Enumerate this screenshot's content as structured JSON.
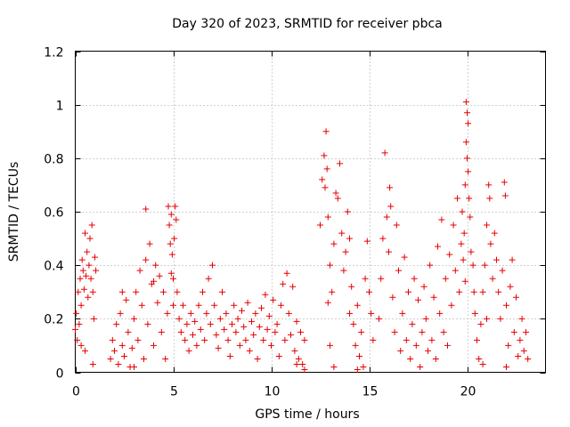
{
  "chart_data": {
    "type": "scatter",
    "title": "Day 320 of 2023, SRMTID for receiver pbca",
    "xlabel": "GPS time / hours",
    "ylabel": "SRMTID / TECUs",
    "xlim": [
      0,
      24
    ],
    "ylim": [
      0,
      1.2
    ],
    "x_ticks": [
      0,
      5,
      10,
      15,
      20
    ],
    "x_tick_labels": [
      "0",
      "5",
      "10",
      "15",
      "20"
    ],
    "y_ticks": [
      0,
      0.2,
      0.4,
      0.6,
      0.8,
      1.0,
      1.2
    ],
    "y_tick_labels": [
      "0",
      "0.2",
      "0.4",
      "0.6",
      "0.8",
      "1",
      "1.2"
    ],
    "grid": true,
    "marker": "+",
    "color": "#e60000",
    "series": [
      {
        "name": "SRMTID",
        "points": [
          [
            0.0,
            0.16
          ],
          [
            0.05,
            0.22
          ],
          [
            0.1,
            0.12
          ],
          [
            0.15,
            0.3
          ],
          [
            0.2,
            0.18
          ],
          [
            0.25,
            0.35
          ],
          [
            0.3,
            0.25
          ],
          [
            0.35,
            0.42
          ],
          [
            0.4,
            0.38
          ],
          [
            0.45,
            0.31
          ],
          [
            0.5,
            0.52
          ],
          [
            0.55,
            0.36
          ],
          [
            0.6,
            0.45
          ],
          [
            0.65,
            0.28
          ],
          [
            0.7,
            0.4
          ],
          [
            0.75,
            0.5
          ],
          [
            0.8,
            0.35
          ],
          [
            0.85,
            0.55
          ],
          [
            0.9,
            0.3
          ],
          [
            0.95,
            0.2
          ],
          [
            1.0,
            0.43
          ],
          [
            1.05,
            0.38
          ],
          [
            0.9,
            0.03
          ],
          [
            0.5,
            0.08
          ],
          [
            0.3,
            0.1
          ],
          [
            1.8,
            0.05
          ],
          [
            1.9,
            0.12
          ],
          [
            2.0,
            0.08
          ],
          [
            2.1,
            0.18
          ],
          [
            2.2,
            0.03
          ],
          [
            2.3,
            0.22
          ],
          [
            2.4,
            0.1
          ],
          [
            2.5,
            0.06
          ],
          [
            2.6,
            0.27
          ],
          [
            2.7,
            0.15
          ],
          [
            2.8,
            0.02
          ],
          [
            2.9,
            0.09
          ],
          [
            3.0,
            0.2
          ],
          [
            3.1,
            0.3
          ],
          [
            3.2,
            0.12
          ],
          [
            3.3,
            0.38
          ],
          [
            3.4,
            0.25
          ],
          [
            3.5,
            0.05
          ],
          [
            3.6,
            0.42
          ],
          [
            3.7,
            0.18
          ],
          [
            3.8,
            0.48
          ],
          [
            3.9,
            0.33
          ],
          [
            4.0,
            0.1
          ],
          [
            4.1,
            0.4
          ],
          [
            4.2,
            0.26
          ],
          [
            4.3,
            0.36
          ],
          [
            4.4,
            0.15
          ],
          [
            4.5,
            0.3
          ],
          [
            4.6,
            0.05
          ],
          [
            4.7,
            0.22
          ],
          [
            3.6,
            0.61
          ],
          [
            2.4,
            0.3
          ],
          [
            3.0,
            0.02
          ],
          [
            4.0,
            0.34
          ],
          [
            4.75,
            0.62
          ],
          [
            4.8,
            0.55
          ],
          [
            4.85,
            0.48
          ],
          [
            4.9,
            0.59
          ],
          [
            4.95,
            0.44
          ],
          [
            5.0,
            0.35
          ],
          [
            5.05,
            0.5
          ],
          [
            5.1,
            0.62
          ],
          [
            5.15,
            0.57
          ],
          [
            4.9,
            0.37
          ],
          [
            5.2,
            0.3
          ],
          [
            5.0,
            0.25
          ],
          [
            5.3,
            0.2
          ],
          [
            5.4,
            0.15
          ],
          [
            5.5,
            0.25
          ],
          [
            5.6,
            0.12
          ],
          [
            5.7,
            0.18
          ],
          [
            5.8,
            0.08
          ],
          [
            5.9,
            0.22
          ],
          [
            6.0,
            0.14
          ],
          [
            6.1,
            0.19
          ],
          [
            6.2,
            0.1
          ],
          [
            6.3,
            0.25
          ],
          [
            6.4,
            0.16
          ],
          [
            6.5,
            0.3
          ],
          [
            6.6,
            0.12
          ],
          [
            6.7,
            0.22
          ],
          [
            6.8,
            0.35
          ],
          [
            6.9,
            0.18
          ],
          [
            7.0,
            0.4
          ],
          [
            7.1,
            0.25
          ],
          [
            7.2,
            0.14
          ],
          [
            7.3,
            0.09
          ],
          [
            7.4,
            0.2
          ],
          [
            7.5,
            0.3
          ],
          [
            7.6,
            0.16
          ],
          [
            7.7,
            0.22
          ],
          [
            7.8,
            0.12
          ],
          [
            7.9,
            0.06
          ],
          [
            8.0,
            0.18
          ],
          [
            8.1,
            0.25
          ],
          [
            8.2,
            0.15
          ],
          [
            8.3,
            0.2
          ],
          [
            8.4,
            0.1
          ],
          [
            8.5,
            0.23
          ],
          [
            8.6,
            0.17
          ],
          [
            8.7,
            0.12
          ],
          [
            8.8,
            0.26
          ],
          [
            8.9,
            0.08
          ],
          [
            9.0,
            0.19
          ],
          [
            9.1,
            0.14
          ],
          [
            9.2,
            0.22
          ],
          [
            9.3,
            0.05
          ],
          [
            9.4,
            0.17
          ],
          [
            9.5,
            0.24
          ],
          [
            9.6,
            0.12
          ],
          [
            9.7,
            0.29
          ],
          [
            9.8,
            0.16
          ],
          [
            9.9,
            0.21
          ],
          [
            10.0,
            0.1
          ],
          [
            10.1,
            0.27
          ],
          [
            10.2,
            0.15
          ],
          [
            10.3,
            0.18
          ],
          [
            10.4,
            0.06
          ],
          [
            10.5,
            0.25
          ],
          [
            10.6,
            0.33
          ],
          [
            10.7,
            0.12
          ],
          [
            10.8,
            0.37
          ],
          [
            10.9,
            0.22
          ],
          [
            11.0,
            0.14
          ],
          [
            11.1,
            0.32
          ],
          [
            11.2,
            0.08
          ],
          [
            11.3,
            0.19
          ],
          [
            11.4,
            0.05
          ],
          [
            11.5,
            0.15
          ],
          [
            11.6,
            0.03
          ],
          [
            11.7,
            0.12
          ],
          [
            11.3,
            0.03
          ],
          [
            11.7,
            0.01
          ],
          [
            12.5,
            0.55
          ],
          [
            12.6,
            0.72
          ],
          [
            12.7,
            0.81
          ],
          [
            12.75,
            0.69
          ],
          [
            12.8,
            0.9
          ],
          [
            12.85,
            0.76
          ],
          [
            12.9,
            0.58
          ],
          [
            13.0,
            0.4
          ],
          [
            13.1,
            0.3
          ],
          [
            13.2,
            0.48
          ],
          [
            13.3,
            0.67
          ],
          [
            13.4,
            0.65
          ],
          [
            13.5,
            0.78
          ],
          [
            13.6,
            0.52
          ],
          [
            13.7,
            0.38
          ],
          [
            13.8,
            0.45
          ],
          [
            13.9,
            0.6
          ],
          [
            14.0,
            0.5
          ],
          [
            14.1,
            0.32
          ],
          [
            14.2,
            0.18
          ],
          [
            14.3,
            0.1
          ],
          [
            14.4,
            0.25
          ],
          [
            14.5,
            0.06
          ],
          [
            14.6,
            0.15
          ],
          [
            14.7,
            0.02
          ],
          [
            14.8,
            0.35
          ],
          [
            14.9,
            0.49
          ],
          [
            15.0,
            0.3
          ],
          [
            15.1,
            0.22
          ],
          [
            15.2,
            0.12
          ],
          [
            13.0,
            0.1
          ],
          [
            13.2,
            0.02
          ],
          [
            12.9,
            0.26
          ],
          [
            14.0,
            0.22
          ],
          [
            14.4,
            0.01
          ],
          [
            15.5,
            0.2
          ],
          [
            15.6,
            0.35
          ],
          [
            15.7,
            0.5
          ],
          [
            15.8,
            0.82
          ],
          [
            15.9,
            0.58
          ],
          [
            16.0,
            0.45
          ],
          [
            16.05,
            0.69
          ],
          [
            16.1,
            0.62
          ],
          [
            16.2,
            0.28
          ],
          [
            16.3,
            0.15
          ],
          [
            16.4,
            0.55
          ],
          [
            16.5,
            0.38
          ],
          [
            16.6,
            0.08
          ],
          [
            16.7,
            0.22
          ],
          [
            16.8,
            0.43
          ],
          [
            16.9,
            0.12
          ],
          [
            17.0,
            0.3
          ],
          [
            17.1,
            0.05
          ],
          [
            17.2,
            0.18
          ],
          [
            17.3,
            0.35
          ],
          [
            17.4,
            0.1
          ],
          [
            17.5,
            0.27
          ],
          [
            17.6,
            0.02
          ],
          [
            17.7,
            0.15
          ],
          [
            17.8,
            0.32
          ],
          [
            17.9,
            0.2
          ],
          [
            18.0,
            0.08
          ],
          [
            18.1,
            0.4
          ],
          [
            18.2,
            0.12
          ],
          [
            18.3,
            0.28
          ],
          [
            18.4,
            0.05
          ],
          [
            18.5,
            0.47
          ],
          [
            18.6,
            0.22
          ],
          [
            18.7,
            0.57
          ],
          [
            18.8,
            0.15
          ],
          [
            18.9,
            0.35
          ],
          [
            19.0,
            0.1
          ],
          [
            19.1,
            0.44
          ],
          [
            19.2,
            0.25
          ],
          [
            19.3,
            0.55
          ],
          [
            19.4,
            0.38
          ],
          [
            19.5,
            0.65
          ],
          [
            19.6,
            0.3
          ],
          [
            19.7,
            0.48
          ],
          [
            19.75,
            0.6
          ],
          [
            19.8,
            0.42
          ],
          [
            19.85,
            0.52
          ],
          [
            19.9,
            0.34
          ],
          [
            19.95,
            1.01
          ],
          [
            20.0,
            0.97
          ],
          [
            20.05,
            0.93
          ],
          [
            19.95,
            0.86
          ],
          [
            20.0,
            0.8
          ],
          [
            20.05,
            0.75
          ],
          [
            19.9,
            0.7
          ],
          [
            20.1,
            0.65
          ],
          [
            20.15,
            0.58
          ],
          [
            20.2,
            0.45
          ],
          [
            20.3,
            0.4
          ],
          [
            20.35,
            0.3
          ],
          [
            20.4,
            0.22
          ],
          [
            20.5,
            0.12
          ],
          [
            20.6,
            0.05
          ],
          [
            20.7,
            0.18
          ],
          [
            20.8,
            0.3
          ],
          [
            20.9,
            0.4
          ],
          [
            21.0,
            0.55
          ],
          [
            21.1,
            0.7
          ],
          [
            21.15,
            0.65
          ],
          [
            21.2,
            0.48
          ],
          [
            21.3,
            0.35
          ],
          [
            21.4,
            0.52
          ],
          [
            21.5,
            0.42
          ],
          [
            21.6,
            0.3
          ],
          [
            21.7,
            0.2
          ],
          [
            21.8,
            0.38
          ],
          [
            21.9,
            0.71
          ],
          [
            21.95,
            0.66
          ],
          [
            22.0,
            0.25
          ],
          [
            22.1,
            0.1
          ],
          [
            22.2,
            0.32
          ],
          [
            22.3,
            0.42
          ],
          [
            22.4,
            0.15
          ],
          [
            22.5,
            0.28
          ],
          [
            22.6,
            0.06
          ],
          [
            22.7,
            0.12
          ],
          [
            22.8,
            0.2
          ],
          [
            22.9,
            0.08
          ],
          [
            23.0,
            0.15
          ],
          [
            23.1,
            0.05
          ],
          [
            21.0,
            0.2
          ],
          [
            20.8,
            0.03
          ],
          [
            22.0,
            0.02
          ]
        ]
      }
    ]
  }
}
